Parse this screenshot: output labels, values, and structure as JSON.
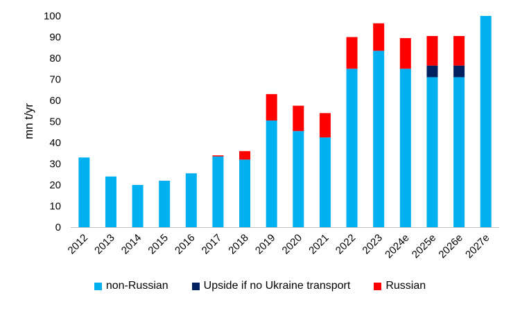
{
  "chart_data": {
    "type": "bar",
    "stacked": true,
    "title": "",
    "xlabel": "",
    "ylabel": "mn t/yr",
    "ylim": [
      0,
      100
    ],
    "yticks": [
      0,
      10,
      20,
      30,
      40,
      50,
      60,
      70,
      80,
      90,
      100
    ],
    "grid": false,
    "legend_position": "bottom",
    "categories": [
      "2012",
      "2013",
      "2014",
      "2015",
      "2016",
      "2017",
      "2018",
      "2019",
      "2020",
      "2021",
      "2022",
      "2023",
      "2024e",
      "2025e",
      "2026e",
      "2027e"
    ],
    "series": [
      {
        "name": "non-Russian",
        "color": "#00B0F0",
        "values": [
          33,
          24,
          20,
          22,
          25.5,
          33.5,
          32,
          50.5,
          45.5,
          42.5,
          75,
          83.5,
          75,
          71,
          71,
          100
        ]
      },
      {
        "name": "Upside if no Ukraine transport",
        "color": "#002060",
        "values": [
          0,
          0,
          0,
          0,
          0,
          0,
          0,
          0,
          0,
          0,
          0,
          0,
          0,
          5.5,
          5.5,
          0
        ]
      },
      {
        "name": "Russian",
        "color": "#FF0000",
        "values": [
          0,
          0,
          0,
          0,
          0,
          0.5,
          4,
          12.5,
          12,
          11.5,
          15,
          13,
          14.5,
          14,
          14,
          0
        ]
      }
    ]
  }
}
